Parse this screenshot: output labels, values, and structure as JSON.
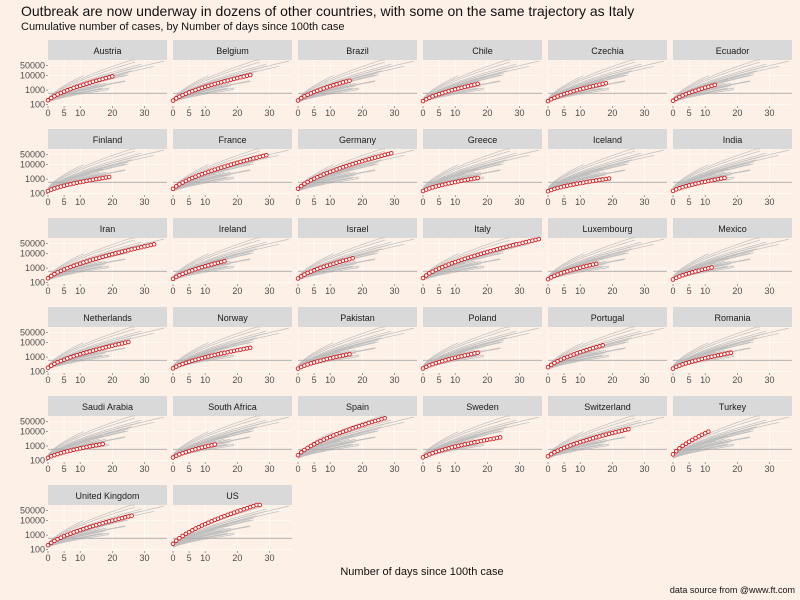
{
  "title": "Outbreak are now underway in dozens of other countries, with some on the same trajectory as Italy",
  "subtitle": "Cumulative number of cases, by Number of days since 100th case",
  "caption": "data source from @www.ft.com",
  "colors": {
    "background": "#fdf0e6",
    "strip": "#d9d9d9",
    "gridline": "#ffffff",
    "trajectory": "#bfbfbf",
    "highlight_line": "#e0102a",
    "point_fill": "#ffffff",
    "point_edge": "#d7191c"
  },
  "chart_data": {
    "type": "line",
    "facet_by": "country",
    "xlabel": "Number of days since 100th case",
    "ylabel": "",
    "x_scale": "linear",
    "y_scale": "log",
    "xlim": [
      0,
      37
    ],
    "ylim": [
      80,
      120000
    ],
    "x_ticks": [
      0,
      5,
      10,
      20,
      30
    ],
    "y_ticks": [
      100,
      1000,
      10000,
      50000
    ],
    "y_tick_labels": [
      "100",
      "1000",
      "10000",
      "50000"
    ],
    "grid": true,
    "reference_line_y": 600,
    "background_series_style": "other countries in grey",
    "series": [
      {
        "name": "Austria",
        "days": 20,
        "last_value": 8800
      },
      {
        "name": "Belgium",
        "days": 24,
        "last_value": 11000
      },
      {
        "name": "Brazil",
        "days": 16,
        "last_value": 4500
      },
      {
        "name": "Chile",
        "days": 17,
        "last_value": 2700
      },
      {
        "name": "Czechia",
        "days": 18,
        "last_value": 3000
      },
      {
        "name": "Ecuador",
        "days": 13,
        "last_value": 2300
      },
      {
        "name": "Finland",
        "days": 19,
        "last_value": 1400
      },
      {
        "name": "France",
        "days": 29,
        "last_value": 45000
      },
      {
        "name": "Germany",
        "days": 29,
        "last_value": 62000
      },
      {
        "name": "Greece",
        "days": 17,
        "last_value": 1200
      },
      {
        "name": "Iceland",
        "days": 19,
        "last_value": 1100
      },
      {
        "name": "India",
        "days": 16,
        "last_value": 1200
      },
      {
        "name": "Iran",
        "days": 33,
        "last_value": 44000
      },
      {
        "name": "Ireland",
        "days": 16,
        "last_value": 3000
      },
      {
        "name": "Israel",
        "days": 17,
        "last_value": 4800
      },
      {
        "name": "Italy",
        "days": 36,
        "last_value": 100000
      },
      {
        "name": "Luxembourg",
        "days": 15,
        "last_value": 2000
      },
      {
        "name": "Mexico",
        "days": 12,
        "last_value": 1100
      },
      {
        "name": "Netherlands",
        "days": 25,
        "last_value": 11000
      },
      {
        "name": "Norway",
        "days": 24,
        "last_value": 4400
      },
      {
        "name": "Pakistan",
        "days": 16,
        "last_value": 1600
      },
      {
        "name": "Poland",
        "days": 17,
        "last_value": 2000
      },
      {
        "name": "Portugal",
        "days": 17,
        "last_value": 6500
      },
      {
        "name": "Romania",
        "days": 18,
        "last_value": 2000
      },
      {
        "name": "Saudi Arabia",
        "days": 17,
        "last_value": 1400
      },
      {
        "name": "South Africa",
        "days": 13,
        "last_value": 1300
      },
      {
        "name": "Spain",
        "days": 27,
        "last_value": 85000
      },
      {
        "name": "Sweden",
        "days": 24,
        "last_value": 4000
      },
      {
        "name": "Switzerland",
        "days": 25,
        "last_value": 15000
      },
      {
        "name": "Turkey",
        "days": 11,
        "last_value": 10000
      },
      {
        "name": "United Kingdom",
        "days": 26,
        "last_value": 22000
      },
      {
        "name": "US",
        "days": 27,
        "last_value": 140000
      }
    ]
  }
}
